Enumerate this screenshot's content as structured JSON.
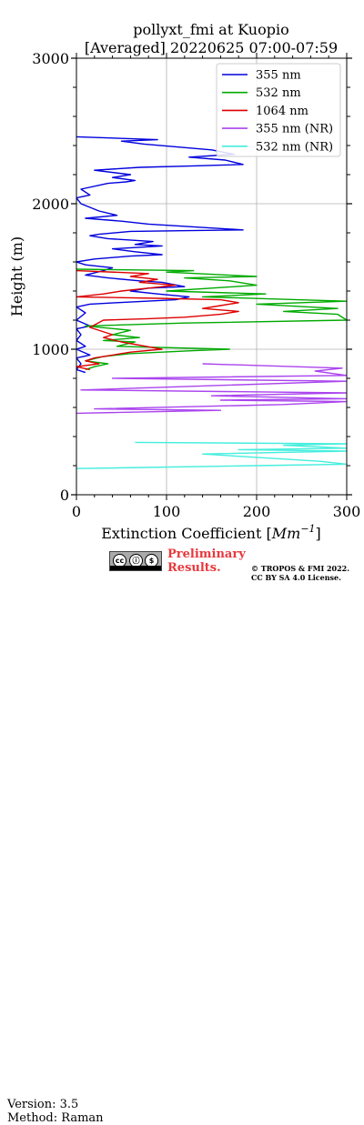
{
  "chart_data": {
    "type": "line",
    "title": [
      "pollyxt_fmi at Kuopio",
      "[Averaged] 20220625 07:00-07:59"
    ],
    "xlabel": "Extinction Coefficient [",
    "xlabel_unit": "Mm",
    "xlabel_exp": "−1",
    "xlabel_close": "]",
    "ylabel": "Height (m)",
    "xlim": [
      0,
      300
    ],
    "ylim": [
      0,
      3000
    ],
    "xticks": [
      0,
      100,
      200,
      300
    ],
    "yticks": [
      0,
      1000,
      2000,
      3000
    ],
    "grid": true,
    "legend_position": "top-right",
    "series": [
      {
        "name": "355 nm",
        "color": "#0000dd",
        "points": [
          [
            0,
            2460
          ],
          [
            90,
            2440
          ],
          [
            50,
            2430
          ],
          [
            75,
            2410
          ],
          [
            150,
            2370
          ],
          [
            175,
            2340
          ],
          [
            125,
            2320
          ],
          [
            165,
            2300
          ],
          [
            185,
            2270
          ],
          [
            130,
            2260
          ],
          [
            70,
            2250
          ],
          [
            20,
            2230
          ],
          [
            60,
            2200
          ],
          [
            40,
            2180
          ],
          [
            65,
            2160
          ],
          [
            55,
            2150
          ],
          [
            35,
            2140
          ],
          [
            5,
            2100
          ],
          [
            15,
            2060
          ],
          [
            0,
            2040
          ],
          [
            5,
            2000
          ],
          [
            25,
            1950
          ],
          [
            45,
            1920
          ],
          [
            10,
            1900
          ],
          [
            50,
            1880
          ],
          [
            80,
            1860
          ],
          [
            185,
            1820
          ],
          [
            60,
            1810
          ],
          [
            25,
            1790
          ],
          [
            15,
            1780
          ],
          [
            35,
            1760
          ],
          [
            85,
            1740
          ],
          [
            65,
            1720
          ],
          [
            95,
            1710
          ],
          [
            40,
            1690
          ],
          [
            65,
            1670
          ],
          [
            95,
            1650
          ],
          [
            60,
            1640
          ],
          [
            20,
            1620
          ],
          [
            0,
            1600
          ],
          [
            10,
            1580
          ],
          [
            40,
            1560
          ],
          [
            30,
            1540
          ],
          [
            10,
            1510
          ],
          [
            35,
            1490
          ],
          [
            70,
            1470
          ],
          [
            95,
            1460
          ],
          [
            120,
            1430
          ],
          [
            80,
            1420
          ],
          [
            60,
            1400
          ],
          [
            90,
            1380
          ],
          [
            125,
            1360
          ],
          [
            110,
            1340
          ],
          [
            45,
            1320
          ],
          [
            15,
            1310
          ],
          [
            0,
            1290
          ],
          [
            10,
            1250
          ],
          [
            0,
            1200
          ],
          [
            15,
            1160
          ],
          [
            0,
            1140
          ],
          [
            5,
            1100
          ],
          [
            0,
            1060
          ],
          [
            10,
            1020
          ],
          [
            0,
            1000
          ],
          [
            15,
            960
          ],
          [
            0,
            940
          ],
          [
            5,
            900
          ],
          [
            0,
            860
          ],
          [
            10,
            840
          ]
        ]
      },
      {
        "name": "532 nm",
        "color": "#00aa00",
        "points": [
          [
            0,
            1550
          ],
          [
            130,
            1540
          ],
          [
            100,
            1530
          ],
          [
            200,
            1500
          ],
          [
            120,
            1490
          ],
          [
            170,
            1470
          ],
          [
            200,
            1440
          ],
          [
            150,
            1420
          ],
          [
            100,
            1400
          ],
          [
            210,
            1380
          ],
          [
            140,
            1360
          ],
          [
            300,
            1330
          ],
          [
            200,
            1310
          ],
          [
            290,
            1280
          ],
          [
            230,
            1260
          ],
          [
            290,
            1240
          ],
          [
            300,
            1200
          ],
          [
            120,
            1180
          ],
          [
            10,
            1160
          ],
          [
            60,
            1130
          ],
          [
            40,
            1100
          ],
          [
            70,
            1080
          ],
          [
            30,
            1060
          ],
          [
            65,
            1050
          ],
          [
            45,
            1020
          ],
          [
            170,
            1000
          ],
          [
            130,
            990
          ],
          [
            60,
            970
          ],
          [
            30,
            950
          ],
          [
            10,
            920
          ],
          [
            35,
            900
          ],
          [
            20,
            880
          ],
          [
            10,
            860
          ]
        ]
      },
      {
        "name": "1064 nm",
        "color": "#dd0000",
        "points": [
          [
            0,
            1540
          ],
          [
            80,
            1520
          ],
          [
            60,
            1500
          ],
          [
            90,
            1480
          ],
          [
            70,
            1460
          ],
          [
            110,
            1440
          ],
          [
            80,
            1420
          ],
          [
            50,
            1400
          ],
          [
            30,
            1380
          ],
          [
            0,
            1360
          ],
          [
            90,
            1350
          ],
          [
            160,
            1340
          ],
          [
            180,
            1320
          ],
          [
            160,
            1300
          ],
          [
            140,
            1280
          ],
          [
            180,
            1260
          ],
          [
            160,
            1240
          ],
          [
            120,
            1220
          ],
          [
            80,
            1210
          ],
          [
            30,
            1200
          ],
          [
            15,
            1150
          ],
          [
            40,
            1100
          ],
          [
            30,
            1080
          ],
          [
            50,
            1050
          ],
          [
            95,
            1000
          ],
          [
            60,
            980
          ],
          [
            40,
            960
          ],
          [
            20,
            940
          ],
          [
            10,
            920
          ],
          [
            25,
            900
          ],
          [
            0,
            880
          ],
          [
            15,
            860
          ]
        ]
      },
      {
        "name": "355 nm (NR)",
        "color": "#aa44ee",
        "points": [
          [
            140,
            900
          ],
          [
            295,
            870
          ],
          [
            265,
            850
          ],
          [
            300,
            820
          ],
          [
            40,
            800
          ],
          [
            300,
            780
          ],
          [
            5,
            720
          ],
          [
            300,
            700
          ],
          [
            150,
            680
          ],
          [
            300,
            660
          ],
          [
            160,
            650
          ],
          [
            300,
            640
          ],
          [
            230,
            620
          ],
          [
            20,
            590
          ],
          [
            160,
            580
          ],
          [
            0,
            560
          ]
        ]
      },
      {
        "name": "532 nm (NR)",
        "color": "#44eedd",
        "points": [
          [
            65,
            360
          ],
          [
            300,
            350
          ],
          [
            230,
            340
          ],
          [
            300,
            320
          ],
          [
            180,
            310
          ],
          [
            300,
            300
          ],
          [
            140,
            280
          ],
          [
            270,
            230
          ],
          [
            300,
            210
          ],
          [
            200,
            200
          ],
          [
            0,
            180
          ]
        ]
      }
    ]
  },
  "footer": {
    "version": "Version: 3.5",
    "method": "Method: Raman",
    "cc_labels": [
      "cc",
      "ⓘ",
      "$"
    ],
    "preliminary": [
      "Preliminary",
      "Results."
    ],
    "copyright": [
      "© TROPOS & FMI 2022.",
      "CC BY SA 4.0 License."
    ]
  }
}
